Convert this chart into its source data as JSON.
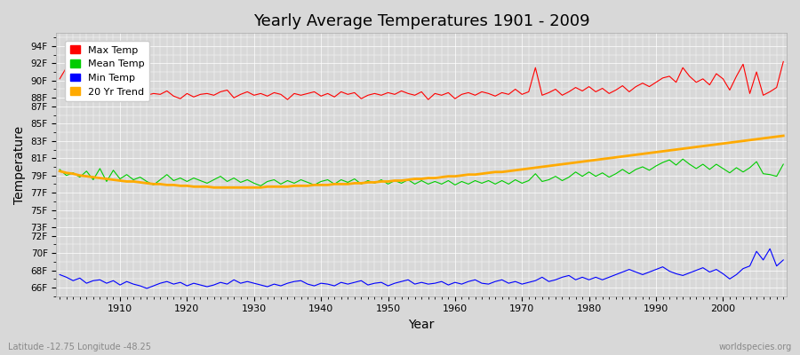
{
  "title": "Yearly Average Temperatures 1901 - 2009",
  "xlabel": "Year",
  "ylabel": "Temperature",
  "x_start": 1901,
  "x_end": 2009,
  "yticks": [
    "66F",
    "68F",
    "70F",
    "72F",
    "73F",
    "75F",
    "77F",
    "79F",
    "81F",
    "83F",
    "85F",
    "87F",
    "88F",
    "90F",
    "92F",
    "94F"
  ],
  "ytick_values": [
    66,
    68,
    70,
    72,
    73,
    75,
    77,
    79,
    81,
    83,
    85,
    87,
    88,
    90,
    92,
    94
  ],
  "ylim": [
    65.0,
    95.5
  ],
  "xlim": [
    1900.5,
    2009.5
  ],
  "bg_color": "#d8d8d8",
  "plot_bg_color": "#d8d8d8",
  "grid_color": "#ffffff",
  "legend_colors": [
    "#ff0000",
    "#00cc00",
    "#0000ff",
    "#ffaa00"
  ],
  "legend_labels": [
    "Max Temp",
    "Mean Temp",
    "Min Temp",
    "20 Yr Trend"
  ],
  "footer_left": "Latitude -12.75 Longitude -48.25",
  "footer_right": "worldspecies.org",
  "max_temp": [
    90.2,
    91.5,
    90.8,
    89.5,
    88.6,
    88.8,
    90.5,
    89.2,
    89.8,
    88.5,
    88.3,
    88.5,
    89.1,
    88.3,
    88.5,
    88.4,
    88.8,
    88.2,
    87.9,
    88.5,
    88.1,
    88.4,
    88.5,
    88.3,
    88.7,
    88.9,
    88.0,
    88.4,
    88.7,
    88.3,
    88.5,
    88.2,
    88.6,
    88.4,
    87.8,
    88.5,
    88.3,
    88.5,
    88.7,
    88.2,
    88.5,
    88.1,
    88.7,
    88.4,
    88.6,
    87.9,
    88.3,
    88.5,
    88.3,
    88.6,
    88.4,
    88.8,
    88.5,
    88.3,
    88.7,
    87.8,
    88.5,
    88.3,
    88.6,
    87.9,
    88.4,
    88.6,
    88.3,
    88.7,
    88.5,
    88.2,
    88.6,
    88.4,
    89.0,
    88.4,
    88.7,
    91.5,
    88.3,
    88.6,
    89.0,
    88.3,
    88.7,
    89.2,
    88.8,
    89.3,
    88.7,
    89.1,
    88.5,
    88.9,
    89.4,
    88.7,
    89.3,
    89.7,
    89.3,
    89.8,
    90.3,
    90.5,
    89.8,
    91.5,
    90.5,
    89.8,
    90.2,
    89.5,
    90.8,
    90.2,
    88.9,
    90.5,
    91.9,
    88.5,
    91.0,
    88.3,
    88.7,
    89.2,
    92.2
  ],
  "mean_temp": [
    79.7,
    79.0,
    79.3,
    78.8,
    79.5,
    78.5,
    79.8,
    78.3,
    79.6,
    78.6,
    79.1,
    78.5,
    78.8,
    78.3,
    77.9,
    78.5,
    79.1,
    78.4,
    78.7,
    78.3,
    78.7,
    78.4,
    78.1,
    78.5,
    78.9,
    78.3,
    78.7,
    78.2,
    78.5,
    78.1,
    77.8,
    78.3,
    78.5,
    78.0,
    78.4,
    78.1,
    78.5,
    78.2,
    77.9,
    78.3,
    78.5,
    78.0,
    78.5,
    78.2,
    78.6,
    78.0,
    78.4,
    78.1,
    78.5,
    78.0,
    78.4,
    78.1,
    78.5,
    78.0,
    78.4,
    78.0,
    78.3,
    78.0,
    78.4,
    77.9,
    78.3,
    78.0,
    78.4,
    78.1,
    78.4,
    78.0,
    78.4,
    78.0,
    78.5,
    78.1,
    78.4,
    79.2,
    78.3,
    78.5,
    78.9,
    78.4,
    78.8,
    79.4,
    78.9,
    79.4,
    78.9,
    79.3,
    78.8,
    79.2,
    79.7,
    79.2,
    79.7,
    80.0,
    79.6,
    80.1,
    80.5,
    80.8,
    80.2,
    80.9,
    80.3,
    79.8,
    80.3,
    79.7,
    80.3,
    79.8,
    79.3,
    79.9,
    79.4,
    79.9,
    80.6,
    79.2,
    79.1,
    78.9,
    80.3
  ],
  "min_temp": [
    67.5,
    67.2,
    66.8,
    67.1,
    66.5,
    66.8,
    66.9,
    66.5,
    66.8,
    66.3,
    66.7,
    66.4,
    66.2,
    65.9,
    66.2,
    66.5,
    66.7,
    66.4,
    66.6,
    66.2,
    66.5,
    66.3,
    66.1,
    66.3,
    66.6,
    66.4,
    66.9,
    66.5,
    66.7,
    66.5,
    66.3,
    66.1,
    66.4,
    66.2,
    66.5,
    66.7,
    66.8,
    66.4,
    66.2,
    66.5,
    66.4,
    66.2,
    66.6,
    66.4,
    66.6,
    66.8,
    66.3,
    66.5,
    66.6,
    66.2,
    66.5,
    66.7,
    66.9,
    66.4,
    66.6,
    66.4,
    66.5,
    66.7,
    66.3,
    66.6,
    66.4,
    66.7,
    66.9,
    66.5,
    66.4,
    66.7,
    66.9,
    66.5,
    66.7,
    66.4,
    66.6,
    66.8,
    67.2,
    66.7,
    66.9,
    67.2,
    67.4,
    66.9,
    67.2,
    66.9,
    67.2,
    66.9,
    67.2,
    67.5,
    67.8,
    68.1,
    67.8,
    67.5,
    67.8,
    68.1,
    68.4,
    67.9,
    67.6,
    67.4,
    67.7,
    68.0,
    68.3,
    67.8,
    68.1,
    67.6,
    67.0,
    67.5,
    68.2,
    68.5,
    70.2,
    69.2,
    70.5,
    68.5,
    69.2
  ],
  "trend": [
    79.5,
    79.3,
    79.2,
    79.0,
    78.9,
    78.8,
    78.7,
    78.6,
    78.5,
    78.4,
    78.3,
    78.3,
    78.2,
    78.1,
    78.0,
    78.0,
    77.9,
    77.9,
    77.8,
    77.8,
    77.7,
    77.7,
    77.7,
    77.6,
    77.6,
    77.6,
    77.6,
    77.6,
    77.6,
    77.6,
    77.6,
    77.7,
    77.7,
    77.7,
    77.7,
    77.8,
    77.8,
    77.8,
    77.9,
    77.9,
    77.9,
    78.0,
    78.0,
    78.0,
    78.1,
    78.1,
    78.2,
    78.2,
    78.3,
    78.3,
    78.4,
    78.4,
    78.5,
    78.6,
    78.6,
    78.7,
    78.7,
    78.8,
    78.9,
    78.9,
    79.0,
    79.1,
    79.1,
    79.2,
    79.3,
    79.4,
    79.4,
    79.5,
    79.6,
    79.7,
    79.8,
    79.9,
    80.0,
    80.1,
    80.2,
    80.3,
    80.4,
    80.5,
    80.6,
    80.7,
    80.8,
    80.9,
    81.0,
    81.1,
    81.2,
    81.3,
    81.4,
    81.5,
    81.6,
    81.7,
    81.8,
    81.9,
    82.0,
    82.1,
    82.2,
    82.3,
    82.4,
    82.5,
    82.6,
    82.7,
    82.8,
    82.9,
    83.0,
    83.1,
    83.2,
    83.3,
    83.4,
    83.5,
    83.6
  ]
}
